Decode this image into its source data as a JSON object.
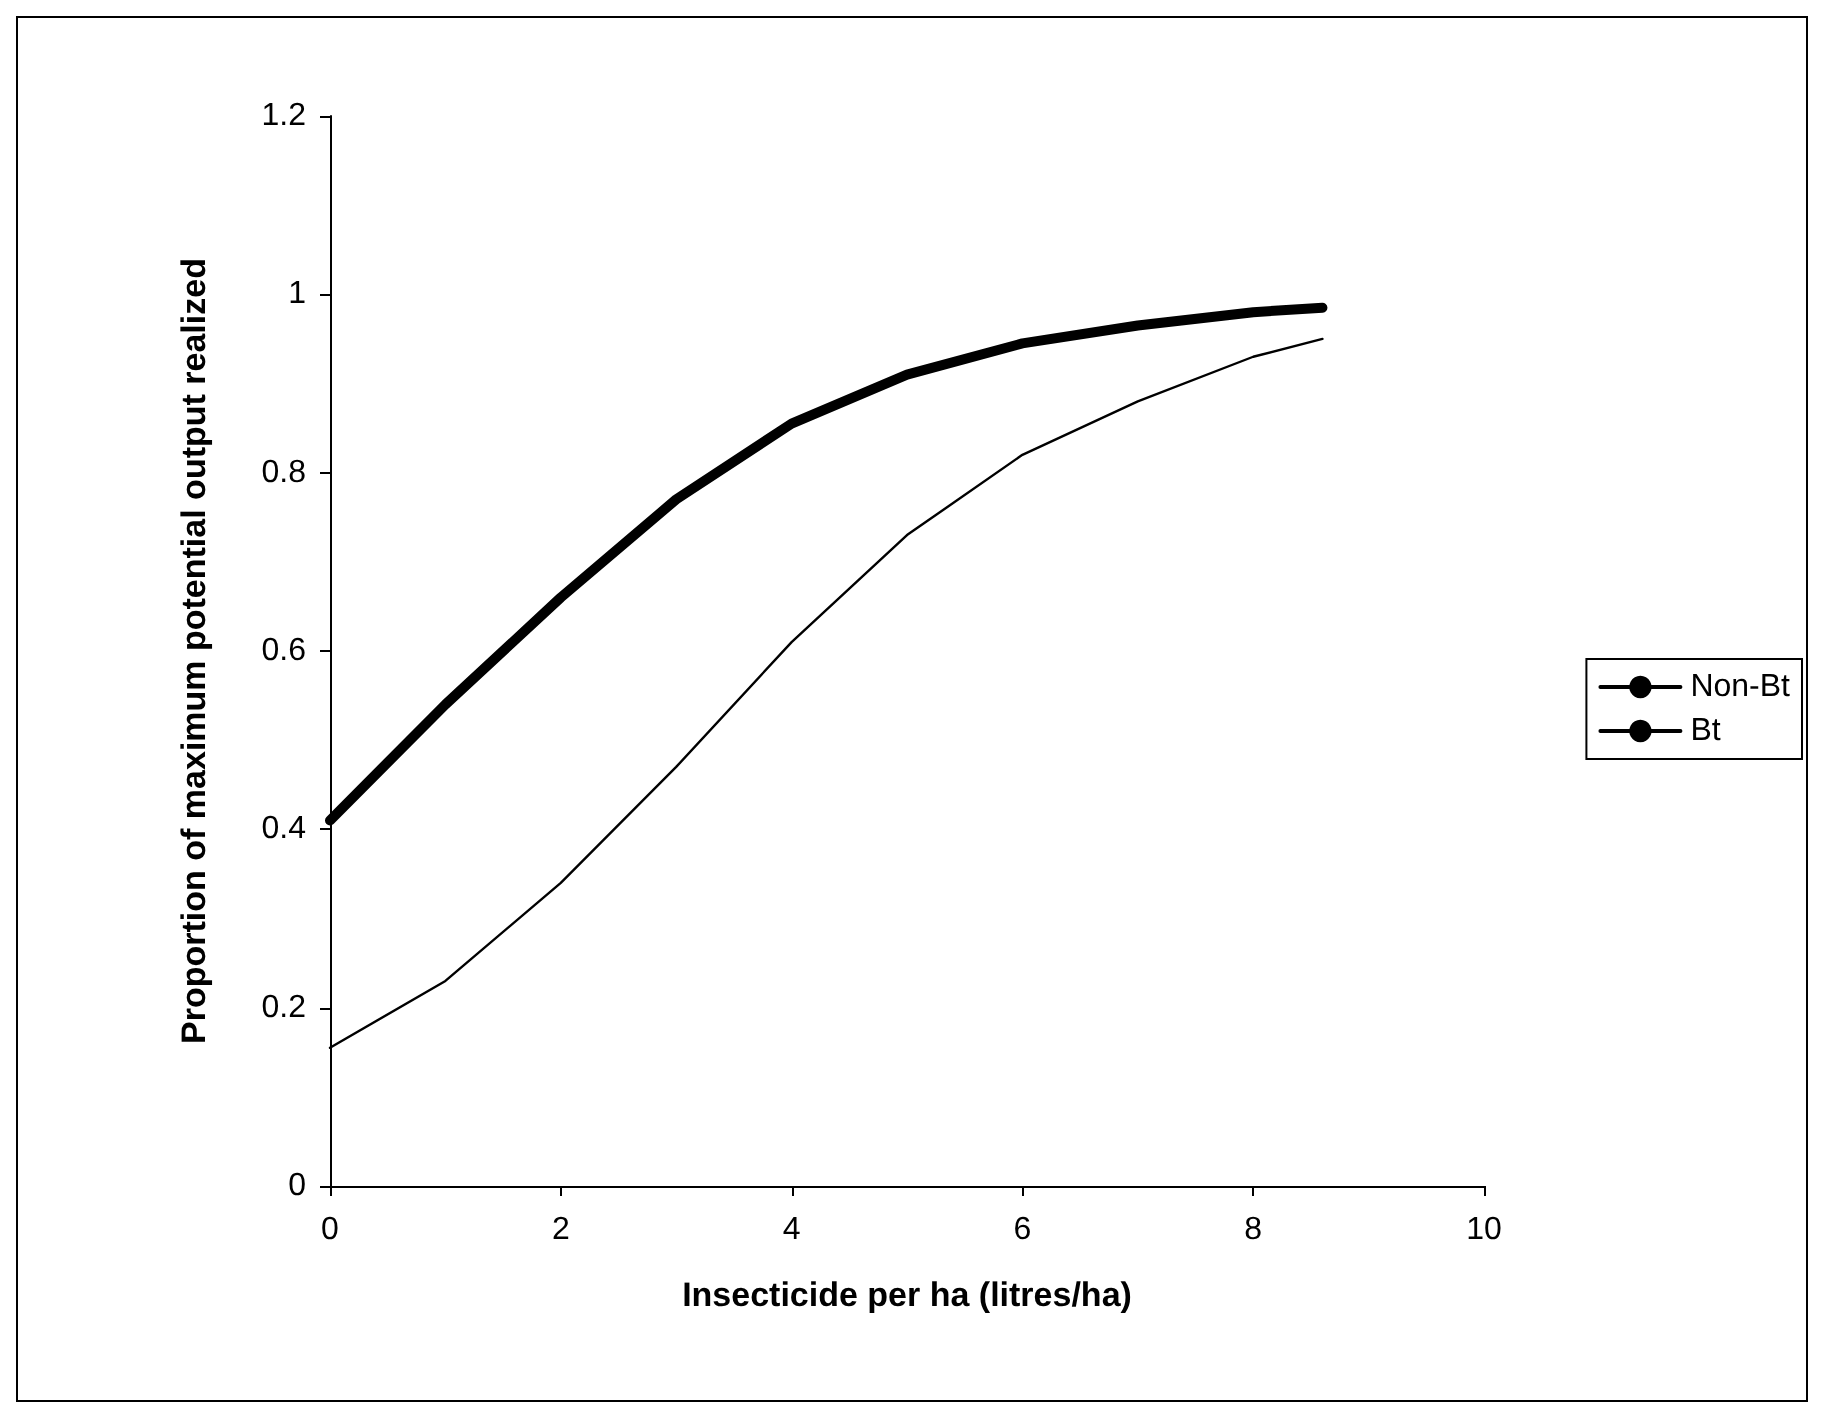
{
  "chart_data": {
    "type": "line",
    "xlabel": "Insecticide per ha (litres/ha)",
    "ylabel": "Proportion of maximum potential output realized",
    "x": [
      0,
      1,
      2,
      3,
      4,
      5,
      6,
      7,
      8,
      8.6
    ],
    "xlim": [
      0,
      10
    ],
    "xticks": [
      0,
      2,
      4,
      6,
      8,
      10
    ],
    "ylim": [
      0,
      1.2
    ],
    "yticks": [
      0,
      0.2,
      0.4,
      0.6,
      0.8,
      1,
      1.2
    ],
    "grid": false,
    "legend": "right",
    "marker": "none",
    "line_style": "solid",
    "series": [
      {
        "name": "Non-Bt",
        "color": "#000000",
        "values": [
          0.155,
          0.23,
          0.34,
          0.47,
          0.61,
          0.73,
          0.82,
          0.88,
          0.93,
          0.95
        ]
      },
      {
        "name": "Bt",
        "color": "#000000",
        "values": [
          0.41,
          0.54,
          0.66,
          0.77,
          0.855,
          0.91,
          0.945,
          0.965,
          0.98,
          0.985
        ]
      }
    ]
  }
}
